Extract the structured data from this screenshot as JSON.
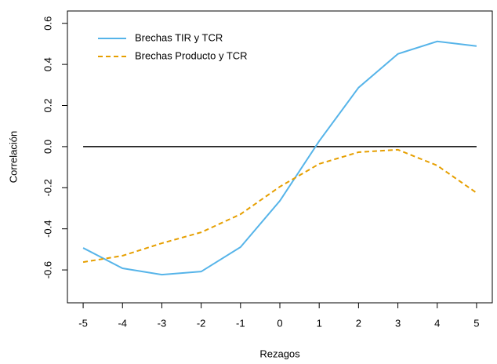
{
  "chart_data": {
    "type": "line",
    "x_label": "Rezagos",
    "y_label": "Correlación",
    "x": [
      -5,
      -4,
      -3,
      -2,
      -1,
      0,
      1,
      2,
      3,
      4,
      5
    ],
    "series": [
      {
        "name": "Brechas TIR y TCR",
        "color": "#56b4e9",
        "dash": false,
        "values": [
          -0.493,
          -0.592,
          -0.623,
          -0.608,
          -0.489,
          -0.264,
          0.027,
          0.287,
          0.451,
          0.512,
          0.489
        ]
      },
      {
        "name": "Brechas Producto y TCR",
        "color": "#e69f00",
        "dash": true,
        "values": [
          -0.562,
          -0.531,
          -0.47,
          -0.417,
          -0.329,
          -0.195,
          -0.084,
          -0.027,
          -0.015,
          -0.092,
          -0.225
        ]
      }
    ],
    "hline": 0,
    "xlim": [
      -5.4,
      5.4
    ],
    "ylim": [
      -0.76,
      0.66
    ],
    "xticks": [
      -5,
      -4,
      -3,
      -2,
      -1,
      0,
      1,
      2,
      3,
      4,
      5
    ],
    "yticks": [
      -0.6,
      -0.4,
      -0.2,
      {
        "value": 0,
        "label": "0.0"
      },
      0.2,
      0.4,
      0.6
    ],
    "legend": "top-left"
  }
}
